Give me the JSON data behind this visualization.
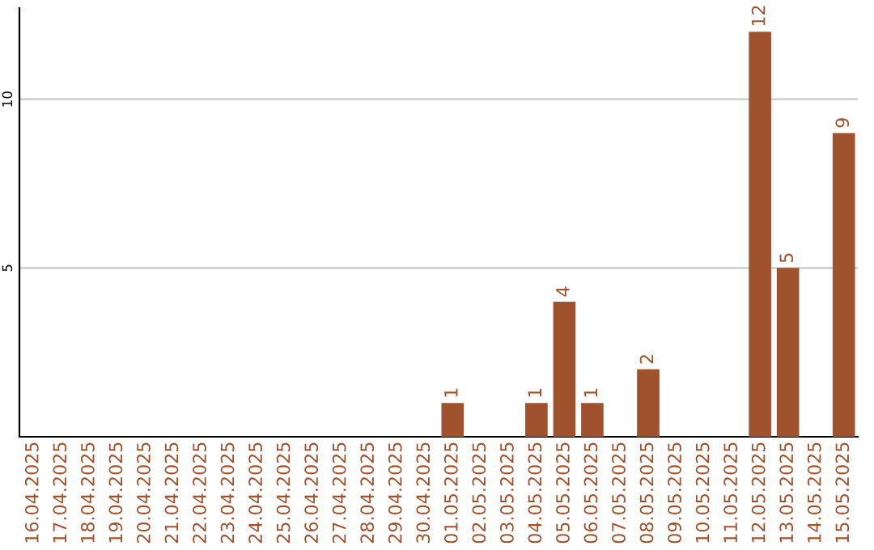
{
  "chart_data": {
    "type": "bar",
    "categories": [
      "16.04.2025",
      "17.04.2025",
      "18.04.2025",
      "19.04.2025",
      "20.04.2025",
      "21.04.2025",
      "22.04.2025",
      "23.04.2025",
      "24.04.2025",
      "25.04.2025",
      "26.04.2025",
      "27.04.2025",
      "28.04.2025",
      "29.04.2025",
      "30.04.2025",
      "01.05.2025",
      "02.05.2025",
      "03.05.2025",
      "04.05.2025",
      "05.05.2025",
      "06.05.2025",
      "07.05.2025",
      "08.05.2025",
      "09.05.2025",
      "10.05.2025",
      "11.05.2025",
      "12.05.2025",
      "13.05.2025",
      "14.05.2025",
      "15.05.2025"
    ],
    "values": [
      0,
      0,
      0,
      0,
      0,
      0,
      0,
      0,
      0,
      0,
      0,
      0,
      0,
      0,
      0,
      1,
      0,
      0,
      1,
      4,
      1,
      0,
      2,
      0,
      0,
      0,
      12,
      5,
      0,
      9
    ],
    "value_labels": [
      null,
      null,
      null,
      null,
      null,
      null,
      null,
      null,
      null,
      null,
      null,
      null,
      null,
      null,
      null,
      "1",
      null,
      null,
      "1",
      "4",
      "1",
      null,
      "2",
      null,
      null,
      null,
      "12",
      "5",
      null,
      "9"
    ],
    "color": "#a0522d",
    "ylim": [
      0,
      12.7
    ],
    "yticks": [
      5,
      10
    ],
    "grid": "y"
  }
}
